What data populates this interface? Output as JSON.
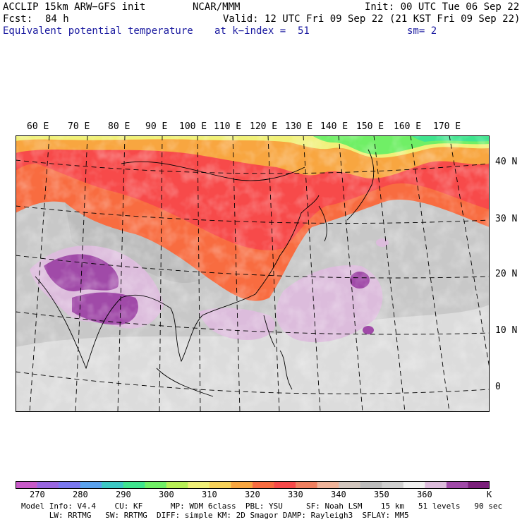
{
  "header": {
    "model": "ACCLIP 15km ARW−GFS init",
    "center": "NCAR/MMM",
    "init": "Init: 00 UTC Tue 06 Sep 22",
    "fcst_label": "Fcst:",
    "fcst_value": "84 h",
    "valid": "Valid: 12 UTC Fri 09 Sep 22 (21 KST Fri 09 Sep 22)",
    "field": "Equivalent potential temperature",
    "level": "at k−index =  51",
    "smooth": "sm= 2"
  },
  "map": {
    "lon_labels": [
      "60 E",
      "70 E",
      "80 E",
      "90 E",
      "100 E",
      "110 E",
      "120 E",
      "130 E",
      "140 E",
      "150 E",
      "160 E",
      "170 E"
    ],
    "lat_labels": [
      "40 N",
      "30 N",
      "20 N",
      "10 N",
      "0"
    ]
  },
  "colorbar": {
    "colors": [
      "#c85ac8",
      "#9966e0",
      "#7a78f0",
      "#5aa2ee",
      "#3cc8c4",
      "#3fe48e",
      "#70ef66",
      "#b8f056",
      "#f0f078",
      "#f7d25a",
      "#f8a640",
      "#f86c40",
      "#f74a4a",
      "#f08060",
      "#f0b49a",
      "#d2c6be",
      "#bcbcbc",
      "#d0d0d0",
      "#f0f0f0",
      "#dcbcdc",
      "#a04aa8",
      "#7a1f7a"
    ],
    "tick_labels": [
      "270",
      "280",
      "290",
      "300",
      "310",
      "320",
      "330",
      "340",
      "350",
      "360"
    ],
    "unit": "K"
  },
  "footer": {
    "line1": "Model Info: V4.4    CU: KF      MP: WDM 6class  PBL: YSU     SF: Noah LSM    15 km   51 levels   90 sec",
    "line2": "      LW: RRTMG   SW: RRTMG  DIFF: simple KM: 2D Smagor DAMP: Rayleigh3  SFLAY: MM5"
  }
}
